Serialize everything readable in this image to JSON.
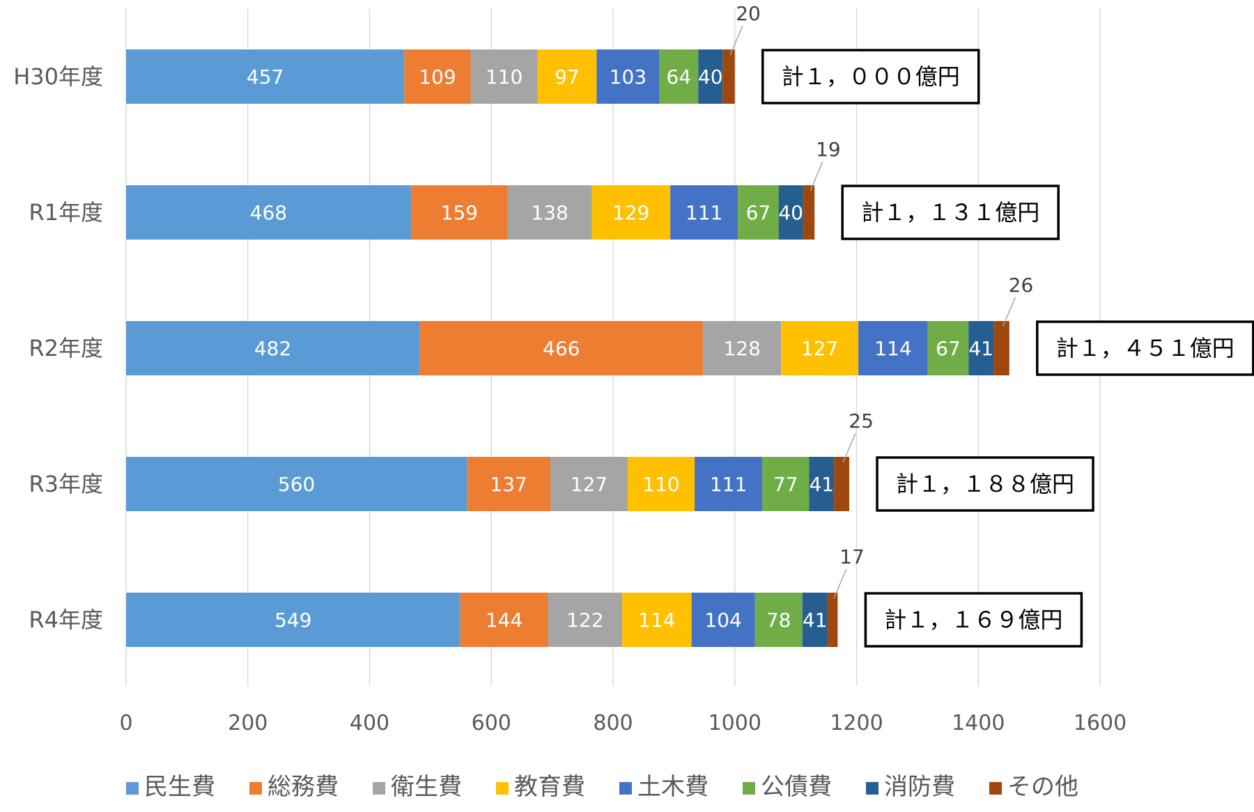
{
  "chart_data": {
    "type": "bar",
    "orientation": "horizontal",
    "stacked": true,
    "title": "",
    "xlabel": "",
    "ylabel": "",
    "xlim": [
      0,
      1600
    ],
    "x_ticks": [
      "0",
      "200",
      "400",
      "600",
      "800",
      "1000",
      "1200",
      "1400",
      "1600"
    ],
    "grid": true,
    "legend_position": "bottom",
    "categories": [
      "H30年度",
      "R1年度",
      "R2年度",
      "R3年度",
      "R4年度"
    ],
    "series": [
      {
        "name": "民生費",
        "color": "#5B9BD5",
        "values": [
          457,
          468,
          482,
          560,
          549
        ]
      },
      {
        "name": "総務費",
        "color": "#ED7D31",
        "values": [
          109,
          159,
          466,
          137,
          144
        ]
      },
      {
        "name": "衛生費",
        "color": "#A5A5A5",
        "values": [
          110,
          138,
          128,
          127,
          122
        ]
      },
      {
        "name": "教育費",
        "color": "#FFC000",
        "values": [
          97,
          129,
          127,
          110,
          114
        ]
      },
      {
        "name": "土木費",
        "color": "#4472C4",
        "values": [
          103,
          111,
          114,
          111,
          104
        ]
      },
      {
        "name": "公債費",
        "color": "#70AD47",
        "values": [
          64,
          67,
          67,
          77,
          78
        ]
      },
      {
        "name": "消防費",
        "color": "#255E91",
        "values": [
          40,
          40,
          41,
          41,
          41
        ]
      },
      {
        "name": "その他",
        "color": "#9E480E",
        "values": [
          20,
          19,
          26,
          25,
          17
        ]
      }
    ],
    "totals": [
      "計１，０００億円",
      "計１，１３１億円",
      "計１，４５１億円",
      "計１，１８８億円",
      "計１，１６９億円"
    ]
  }
}
